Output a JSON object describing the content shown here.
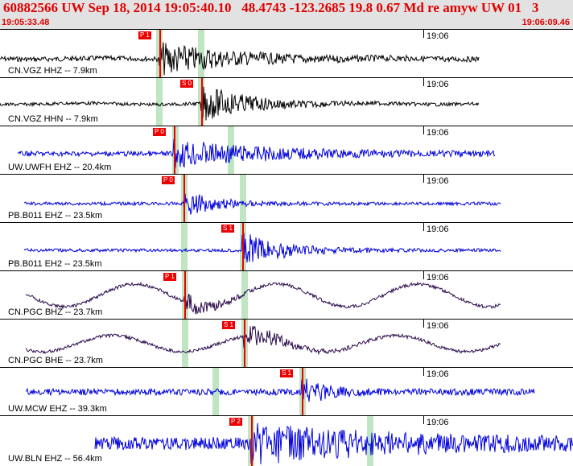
{
  "header": {
    "title": "60882566 UW Sep 18, 2014 19:05:40.10   48.4743 -123.2685 19.8 0.67 Md re amyw UW 01   3",
    "time_start": "19:05:33.48",
    "time_end": "19:06:09.46"
  },
  "colors": {
    "header_bg": "#e2e2e2",
    "header_text": "#e00000",
    "pick": "#ee0000",
    "window": "#bfe5c3",
    "wave_black": "#000000",
    "wave_blue": "#0000dd",
    "wave_navy": "#2a0a4a"
  },
  "traces": [
    {
      "label": "CN.VGZ HHZ -- 7.9km",
      "tick": "19:06",
      "pick": "P 1",
      "color": "black"
    },
    {
      "label": "CN.VGZ HHN -- 7.9km",
      "tick": "19:06",
      "pick": "S 0",
      "color": "black"
    },
    {
      "label": "UW.UWFH EHZ -- 20.4km",
      "tick": "19:06",
      "pick": "P 0",
      "color": "blue"
    },
    {
      "label": "PB.B011 EHZ -- 23.5km",
      "tick": "19:06",
      "pick": "P 0",
      "color": "blue"
    },
    {
      "label": "PB.B011 EH2 -- 23.5km",
      "tick": "19:06",
      "pick": "S 1",
      "color": "blue"
    },
    {
      "label": "CN.PGC BHZ -- 23.7km",
      "tick": "19:06",
      "pick": "P 1",
      "color": "navy"
    },
    {
      "label": "CN.PGC BHE -- 23.7km",
      "tick": "19:06",
      "pick": "S 1",
      "color": "navy"
    },
    {
      "label": "UW.MCW EHZ -- 39.3km",
      "tick": "19:06",
      "pick": "S 1",
      "color": "blue"
    },
    {
      "label": "UW.BLN EHZ -- 56.4km",
      "tick": "19:06",
      "pick": "P 2",
      "color": "blue"
    }
  ]
}
